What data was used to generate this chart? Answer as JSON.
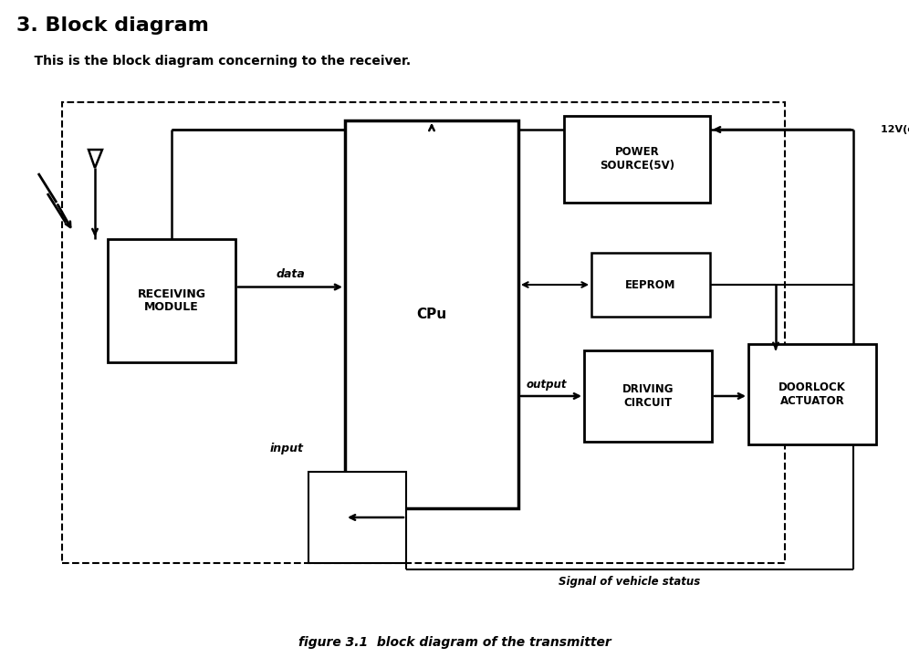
{
  "title": "3. Block diagram",
  "subtitle": "    This is the block diagram concerning to the receiver.",
  "caption": "figure 3.1  block diagram of the transmitter",
  "bg_color": "#ffffff",
  "text_color": "#000000",
  "fig_width": 9.96,
  "fig_height": 7.32,
  "dpi": 100
}
